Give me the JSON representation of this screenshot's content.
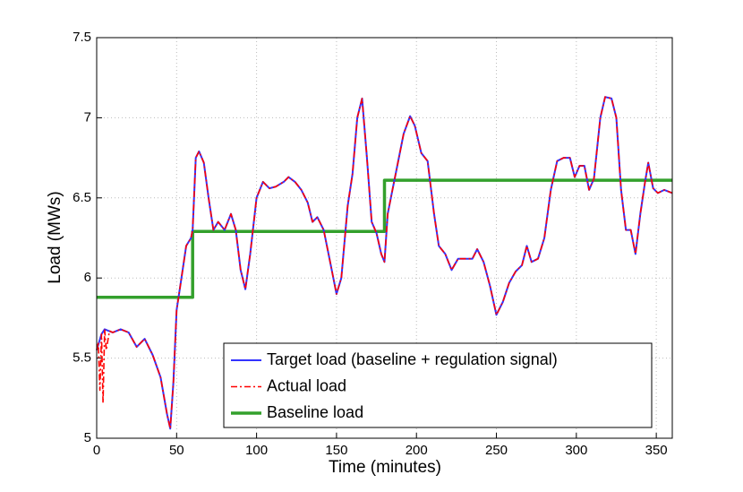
{
  "chart_data": {
    "type": "line",
    "xlabel": "Time (minutes)",
    "ylabel": "Load (MWs)",
    "xlim": [
      0,
      360
    ],
    "ylim": [
      5,
      7.5
    ],
    "xticks": [
      0,
      50,
      100,
      150,
      200,
      250,
      300,
      350
    ],
    "yticks": [
      5,
      5.5,
      6,
      6.5,
      7,
      7.5
    ],
    "grid": true,
    "legend": "bottom-right",
    "series": [
      {
        "name": "Target load (baseline + regulation signal)",
        "color": "#3333ff",
        "style": "solid",
        "x": [
          0,
          3,
          5,
          10,
          15,
          20,
          25,
          30,
          35,
          40,
          44,
          46,
          48,
          50,
          53,
          56,
          59,
          60,
          62,
          64,
          67,
          70,
          73,
          76,
          80,
          84,
          87,
          90,
          93,
          96,
          100,
          104,
          108,
          112,
          117,
          120,
          124,
          128,
          132,
          135,
          138,
          142,
          146,
          150,
          153,
          157,
          160,
          163,
          166,
          169,
          172,
          175,
          178,
          180,
          182,
          185,
          188,
          192,
          196,
          199,
          203,
          207,
          211,
          214,
          218,
          222,
          226,
          230,
          235,
          238,
          242,
          246,
          250,
          254,
          258,
          262,
          266,
          269,
          272,
          276,
          280,
          284,
          288,
          292,
          296,
          299,
          302,
          305,
          308,
          311,
          315,
          318,
          322,
          325,
          328,
          331,
          334,
          337,
          340,
          343,
          345,
          348,
          351,
          355,
          360
        ],
        "values": [
          5.55,
          5.65,
          5.68,
          5.66,
          5.68,
          5.66,
          5.57,
          5.62,
          5.52,
          5.38,
          5.15,
          5.06,
          5.35,
          5.8,
          6.0,
          6.2,
          6.25,
          6.3,
          6.75,
          6.79,
          6.72,
          6.5,
          6.3,
          6.35,
          6.3,
          6.4,
          6.3,
          6.05,
          5.93,
          6.15,
          6.5,
          6.6,
          6.56,
          6.57,
          6.6,
          6.63,
          6.6,
          6.55,
          6.47,
          6.35,
          6.38,
          6.3,
          6.1,
          5.9,
          6.0,
          6.45,
          6.65,
          7.0,
          7.12,
          6.75,
          6.35,
          6.28,
          6.15,
          6.1,
          6.4,
          6.55,
          6.7,
          6.9,
          7.01,
          6.95,
          6.78,
          6.73,
          6.4,
          6.2,
          6.15,
          6.05,
          6.12,
          6.12,
          6.12,
          6.18,
          6.1,
          5.95,
          5.77,
          5.85,
          5.97,
          6.04,
          6.08,
          6.2,
          6.1,
          6.12,
          6.25,
          6.55,
          6.73,
          6.75,
          6.75,
          6.63,
          6.7,
          6.7,
          6.55,
          6.62,
          7.0,
          7.13,
          7.12,
          7.0,
          6.55,
          6.3,
          6.3,
          6.15,
          6.4,
          6.6,
          6.72,
          6.56,
          6.53,
          6.55,
          6.53
        ]
      },
      {
        "name": "Actual load",
        "color": "#ff0000",
        "style": "dashdot",
        "x": [
          0,
          1,
          2,
          3,
          4,
          5,
          6,
          8,
          10,
          15,
          20,
          25,
          30,
          35,
          40,
          44,
          46,
          48,
          50,
          53,
          56,
          59,
          60,
          62,
          64,
          67,
          70,
          73,
          76,
          80,
          84,
          87,
          90,
          93,
          96,
          100,
          104,
          108,
          112,
          117,
          120,
          124,
          128,
          132,
          135,
          138,
          142,
          146,
          150,
          153,
          157,
          160,
          163,
          166,
          169,
          172,
          175,
          178,
          180,
          182,
          185,
          188,
          192,
          196,
          199,
          203,
          207,
          211,
          214,
          218,
          222,
          226,
          230,
          235,
          238,
          242,
          246,
          250,
          254,
          258,
          262,
          266,
          269,
          272,
          276,
          280,
          284,
          288,
          292,
          296,
          299,
          302,
          305,
          308,
          311,
          315,
          318,
          322,
          325,
          328,
          331,
          334,
          337,
          340,
          343,
          345,
          348,
          351,
          355,
          360
        ],
        "values": [
          5.55,
          5.6,
          5.3,
          5.65,
          5.22,
          5.68,
          5.55,
          5.67,
          5.66,
          5.68,
          5.66,
          5.57,
          5.62,
          5.52,
          5.38,
          5.15,
          5.06,
          5.35,
          5.8,
          6.0,
          6.2,
          6.25,
          6.3,
          6.75,
          6.79,
          6.72,
          6.5,
          6.3,
          6.35,
          6.3,
          6.4,
          6.3,
          6.05,
          5.93,
          6.15,
          6.5,
          6.6,
          6.56,
          6.57,
          6.6,
          6.63,
          6.6,
          6.55,
          6.47,
          6.35,
          6.38,
          6.3,
          6.1,
          5.9,
          6.0,
          6.45,
          6.65,
          7.0,
          7.12,
          6.75,
          6.35,
          6.28,
          6.15,
          6.1,
          6.4,
          6.55,
          6.7,
          6.9,
          7.01,
          6.95,
          6.78,
          6.73,
          6.4,
          6.2,
          6.15,
          6.05,
          6.12,
          6.12,
          6.12,
          6.18,
          6.1,
          5.95,
          5.77,
          5.85,
          5.97,
          6.04,
          6.08,
          6.2,
          6.1,
          6.12,
          6.25,
          6.55,
          6.73,
          6.75,
          6.75,
          6.63,
          6.7,
          6.7,
          6.55,
          6.62,
          7.0,
          7.13,
          7.12,
          7.0,
          6.55,
          6.3,
          6.3,
          6.15,
          6.4,
          6.6,
          6.72,
          6.56,
          6.53,
          6.55,
          6.53
        ]
      },
      {
        "name": "Baseline load",
        "color": "#33a02c",
        "style": "thick",
        "x": [
          0,
          60,
          60,
          180,
          180,
          360
        ],
        "values": [
          5.88,
          5.88,
          6.29,
          6.29,
          6.61,
          6.61
        ]
      }
    ]
  }
}
